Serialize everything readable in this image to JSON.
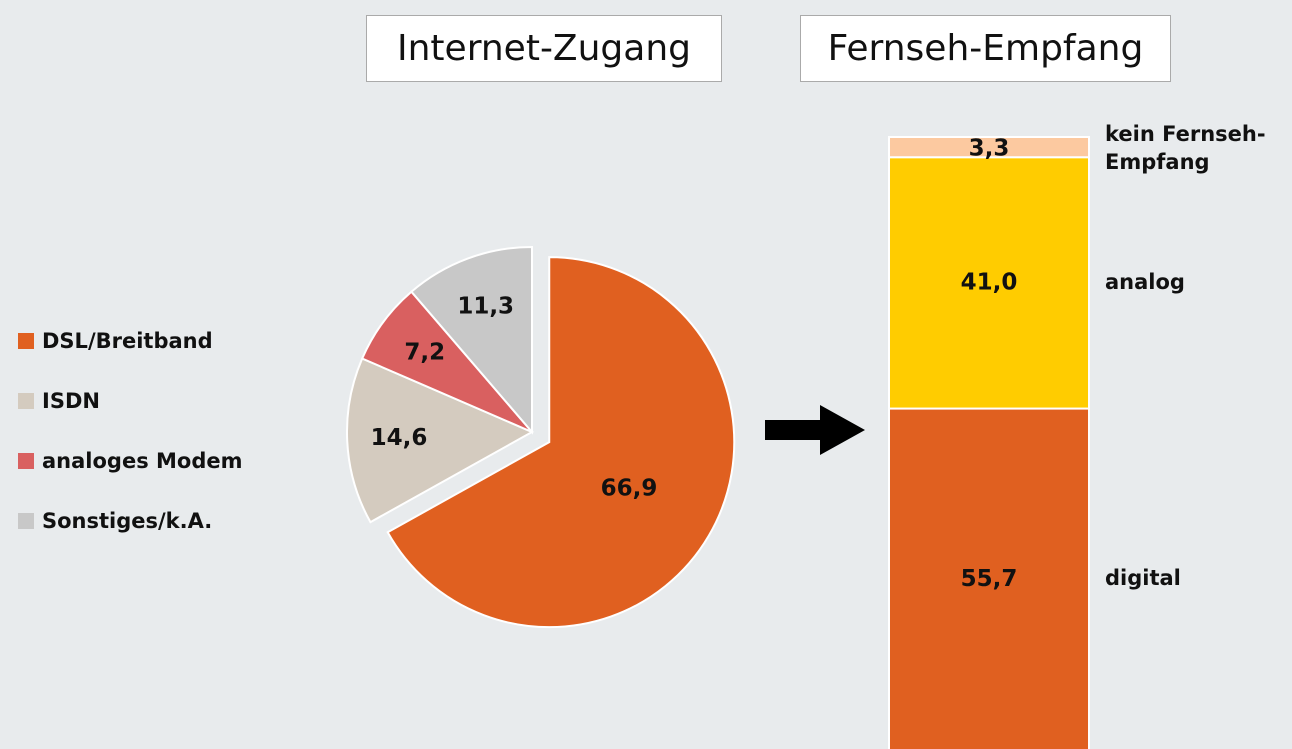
{
  "chart_data": [
    {
      "type": "pie",
      "title": "Internet-Zugang",
      "categories": [
        "DSL/Breitband",
        "ISDN",
        "analoges Modem",
        "Sonstiges/k.A."
      ],
      "values": [
        66.9,
        14.6,
        7.2,
        11.3
      ],
      "value_labels": [
        "66,9",
        "14,6",
        "7,2",
        "11,3"
      ],
      "colors": [
        "#e06020",
        "#d4cbbf",
        "#d96060",
        "#c8c8c8"
      ],
      "legend": "left"
    },
    {
      "type": "stacked-bar",
      "title": "Fernseh-Empfang",
      "series": [
        {
          "name": "digital",
          "color": "#e06020",
          "values": [
            55.7
          ],
          "value_labels": [
            "55,7"
          ]
        },
        {
          "name": "analog",
          "color": "#ffcc00",
          "values": [
            41.0
          ],
          "value_labels": [
            "41,0"
          ]
        },
        {
          "name": "kein Fernseh-Empfang",
          "color": "#fcc9a0",
          "values": [
            3.3
          ],
          "value_labels": [
            "3,3"
          ]
        }
      ]
    }
  ]
}
